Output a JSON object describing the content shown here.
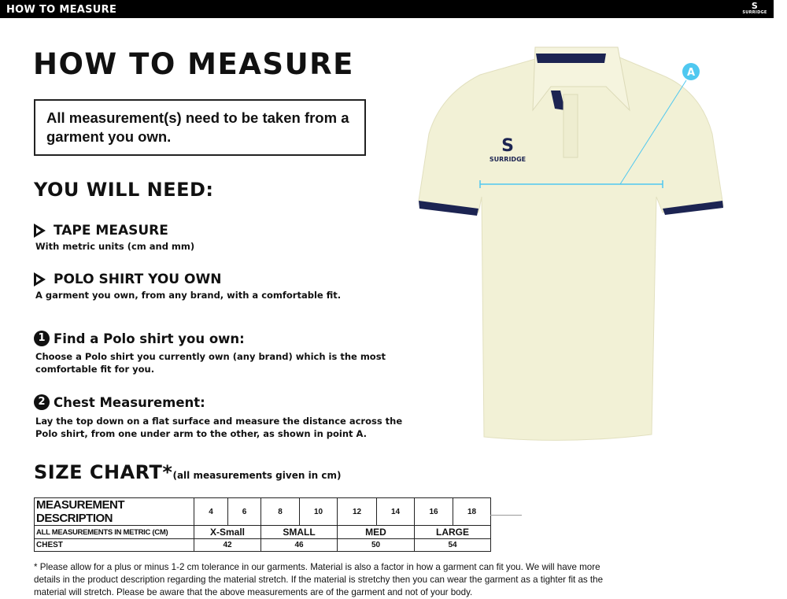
{
  "header": {
    "title": "HOW TO MEASURE",
    "logo_text": "SURRIDGE"
  },
  "main": {
    "title": "HOW TO MEASURE",
    "note": "All measurement(s) need to be taken from a garment you own.",
    "you_will_need": "YOU WILL NEED:",
    "items": [
      {
        "title": "TAPE MEASURE",
        "desc": "With metric units (cm and mm)"
      },
      {
        "title": "POLO SHIRT YOU OWN",
        "desc": "A garment you own, from any brand, with a comfortable fit."
      }
    ],
    "steps": [
      {
        "num": "1",
        "title": "Find a Polo shirt you own:",
        "desc": "Choose a Polo shirt you currently own (any brand) which is the most comfortable fit for you."
      },
      {
        "num": "2",
        "title": "Chest Measurement:",
        "desc": "Lay the top down on a flat surface and measure the distance across the Polo shirt, from one under arm to the other, as shown in point A."
      }
    ],
    "size_chart_title": "SIZE CHART*",
    "size_chart_sub": "(all measurements given in cm)"
  },
  "size_table": {
    "header_label": "MEASUREMENT DESCRIPTION",
    "sizes": [
      "4",
      "6",
      "8",
      "10",
      "12",
      "14",
      "16",
      "18"
    ],
    "metric_label": "ALL MEASUREMENTS IN METRIC (CM)",
    "groups": [
      "X-Small",
      "SMALL",
      "MED",
      "LARGE"
    ],
    "chest_label": "CHEST",
    "chest": [
      "42",
      "46",
      "50",
      "54"
    ]
  },
  "illustration": {
    "point_label": "A",
    "logo_text": "SURRIDGE",
    "accent": "#4fc8f0",
    "navy": "#1c2452",
    "shirt": "#f2f1d6"
  },
  "footnote": "* Please allow for a plus or minus 1-2 cm tolerance in our garments. Material is also a factor in how a garment can fit you. We will have more details in the product description regarding the material stretch.  If the material is stretchy then you can wear the garment as a tighter fit as the material will stretch.  Please be aware that the above measurements are of the garment and not of your body."
}
